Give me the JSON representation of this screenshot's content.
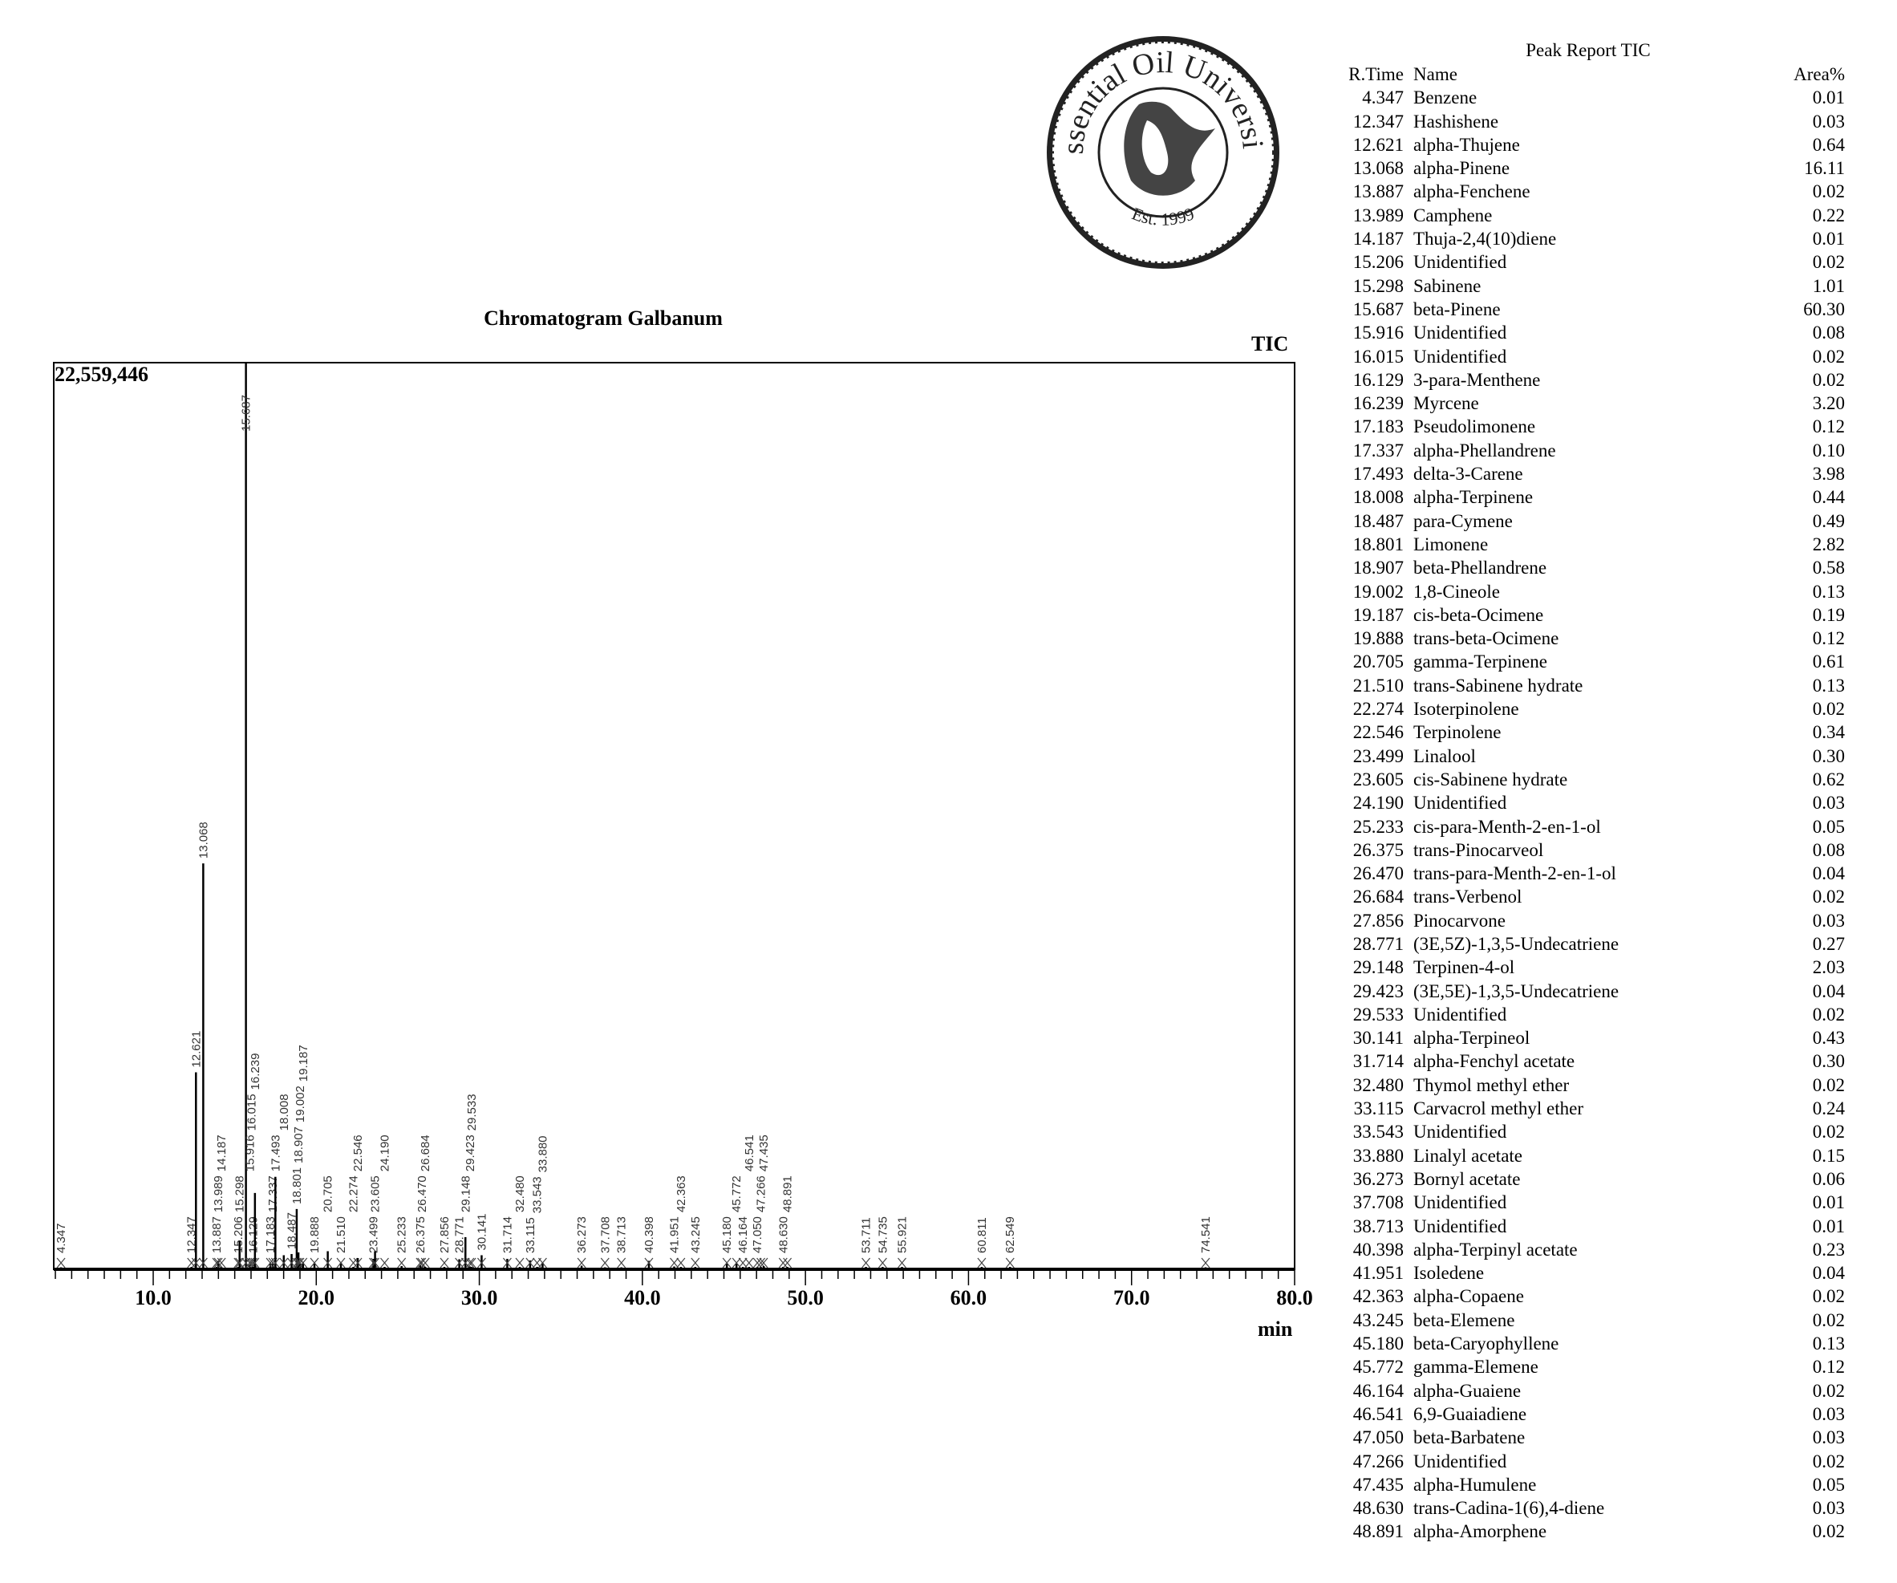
{
  "logo": {
    "text_top": "Essential Oil University",
    "text_bottom": "Est. 1999"
  },
  "chart_data": {
    "type": "line",
    "title": "Chromatogram Galbanum",
    "signal_label": "TIC",
    "y_max_label": "22,559,446",
    "xlabel": "min",
    "xlim": [
      3.9,
      80.0
    ],
    "ylim": [
      0,
      22559446
    ],
    "x_ticks": [
      "10.0",
      "20.0",
      "30.0",
      "40.0",
      "50.0",
      "60.0",
      "70.0",
      "80.0"
    ],
    "x_tick_values": [
      10,
      20,
      30,
      40,
      50,
      60,
      70,
      80
    ],
    "peaks_rt": [
      4.347,
      12.347,
      12.621,
      13.068,
      13.887,
      13.989,
      14.187,
      15.206,
      15.298,
      15.687,
      15.916,
      16.015,
      16.129,
      16.239,
      17.183,
      17.337,
      17.493,
      18.008,
      18.487,
      18.801,
      18.907,
      19.002,
      19.187,
      19.888,
      20.705,
      21.51,
      22.274,
      22.546,
      23.499,
      23.605,
      24.19,
      25.233,
      26.375,
      26.47,
      26.684,
      27.856,
      28.771,
      29.148,
      29.423,
      29.533,
      30.141,
      31.714,
      32.48,
      33.115,
      33.543,
      33.88,
      36.273,
      37.708,
      38.713,
      40.398,
      41.951,
      42.363,
      43.245,
      45.18,
      45.772,
      46.164,
      46.541,
      47.05,
      47.266,
      47.435,
      48.63,
      48.891,
      53.711,
      54.735,
      55.921,
      60.811,
      62.549,
      74.541
    ],
    "peaks_height": [
      50000,
      60000,
      4900000,
      10100000,
      60000,
      200000,
      50000,
      60000,
      700000,
      22559446,
      120000,
      60000,
      60000,
      1900000,
      150000,
      140000,
      2300000,
      350000,
      380000,
      1500000,
      420000,
      150000,
      190000,
      150000,
      450000,
      160000,
      60000,
      280000,
      260000,
      450000,
      60000,
      80000,
      100000,
      70000,
      60000,
      60000,
      250000,
      800000,
      70000,
      60000,
      350000,
      260000,
      60000,
      220000,
      60000,
      160000,
      90000,
      50000,
      50000,
      210000,
      70000,
      60000,
      60000,
      150000,
      140000,
      60000,
      60000,
      60000,
      60000,
      80000,
      60000,
      60000,
      60000,
      60000,
      60000,
      60000,
      60000,
      50000
    ]
  },
  "report": {
    "title": "Peak Report TIC",
    "headers": {
      "rt": "R.Time",
      "name": "Name",
      "area": "Area%"
    },
    "rows": [
      [
        "4.347",
        "Benzene",
        "0.01"
      ],
      [
        "12.347",
        "Hashishene",
        "0.03"
      ],
      [
        "12.621",
        "alpha-Thujene",
        "0.64"
      ],
      [
        "13.068",
        "alpha-Pinene",
        "16.11"
      ],
      [
        "13.887",
        "alpha-Fenchene",
        "0.02"
      ],
      [
        "13.989",
        "Camphene",
        "0.22"
      ],
      [
        "14.187",
        "Thuja-2,4(10)diene",
        "0.01"
      ],
      [
        "15.206",
        "Unidentified",
        "0.02"
      ],
      [
        "15.298",
        "Sabinene",
        "1.01"
      ],
      [
        "15.687",
        "beta-Pinene",
        "60.30"
      ],
      [
        "15.916",
        "Unidentified",
        "0.08"
      ],
      [
        "16.015",
        "Unidentified",
        "0.02"
      ],
      [
        "16.129",
        "3-para-Menthene",
        "0.02"
      ],
      [
        "16.239",
        "Myrcene",
        "3.20"
      ],
      [
        "17.183",
        "Pseudolimonene",
        "0.12"
      ],
      [
        "17.337",
        "alpha-Phellandrene",
        "0.10"
      ],
      [
        "17.493",
        "delta-3-Carene",
        "3.98"
      ],
      [
        "18.008",
        "alpha-Terpinene",
        "0.44"
      ],
      [
        "18.487",
        "para-Cymene",
        "0.49"
      ],
      [
        "18.801",
        "Limonene",
        "2.82"
      ],
      [
        "18.907",
        "beta-Phellandrene",
        "0.58"
      ],
      [
        "19.002",
        "1,8-Cineole",
        "0.13"
      ],
      [
        "19.187",
        "cis-beta-Ocimene",
        "0.19"
      ],
      [
        "19.888",
        "trans-beta-Ocimene",
        "0.12"
      ],
      [
        "20.705",
        "gamma-Terpinene",
        "0.61"
      ],
      [
        "21.510",
        "trans-Sabinene hydrate",
        "0.13"
      ],
      [
        "22.274",
        "Isoterpinolene",
        "0.02"
      ],
      [
        "22.546",
        "Terpinolene",
        "0.34"
      ],
      [
        "23.499",
        "Linalool",
        "0.30"
      ],
      [
        "23.605",
        "cis-Sabinene hydrate",
        "0.62"
      ],
      [
        "24.190",
        "Unidentified",
        "0.03"
      ],
      [
        "25.233",
        "cis-para-Menth-2-en-1-ol",
        "0.05"
      ],
      [
        "26.375",
        "trans-Pinocarveol",
        "0.08"
      ],
      [
        "26.470",
        "trans-para-Menth-2-en-1-ol",
        "0.04"
      ],
      [
        "26.684",
        "trans-Verbenol",
        "0.02"
      ],
      [
        "27.856",
        "Pinocarvone",
        "0.03"
      ],
      [
        "28.771",
        "(3E,5Z)-1,3,5-Undecatriene",
        "0.27"
      ],
      [
        "29.148",
        "Terpinen-4-ol",
        "2.03"
      ],
      [
        "29.423",
        "(3E,5E)-1,3,5-Undecatriene",
        "0.04"
      ],
      [
        "29.533",
        "Unidentified",
        "0.02"
      ],
      [
        "30.141",
        "alpha-Terpineol",
        "0.43"
      ],
      [
        "31.714",
        "alpha-Fenchyl acetate",
        "0.30"
      ],
      [
        "32.480",
        "Thymol methyl ether",
        "0.02"
      ],
      [
        "33.115",
        "Carvacrol methyl ether",
        "0.24"
      ],
      [
        "33.543",
        "Unidentified",
        "0.02"
      ],
      [
        "33.880",
        "Linalyl acetate",
        "0.15"
      ],
      [
        "36.273",
        "Bornyl acetate",
        "0.06"
      ],
      [
        "37.708",
        "Unidentified",
        "0.01"
      ],
      [
        "38.713",
        "Unidentified",
        "0.01"
      ],
      [
        "40.398",
        "alpha-Terpinyl acetate",
        "0.23"
      ],
      [
        "41.951",
        "Isoledene",
        "0.04"
      ],
      [
        "42.363",
        "alpha-Copaene",
        "0.02"
      ],
      [
        "43.245",
        "beta-Elemene",
        "0.02"
      ],
      [
        "45.180",
        "beta-Caryophyllene",
        "0.13"
      ],
      [
        "45.772",
        "gamma-Elemene",
        "0.12"
      ],
      [
        "46.164",
        "alpha-Guaiene",
        "0.02"
      ],
      [
        "46.541",
        "6,9-Guaiadiene",
        "0.03"
      ],
      [
        "47.050",
        "beta-Barbatene",
        "0.03"
      ],
      [
        "47.266",
        "Unidentified",
        "0.02"
      ],
      [
        "47.435",
        "alpha-Humulene",
        "0.05"
      ],
      [
        "48.630",
        "trans-Cadina-1(6),4-diene",
        "0.03"
      ],
      [
        "48.891",
        "alpha-Amorphene",
        "0.02"
      ]
    ]
  }
}
